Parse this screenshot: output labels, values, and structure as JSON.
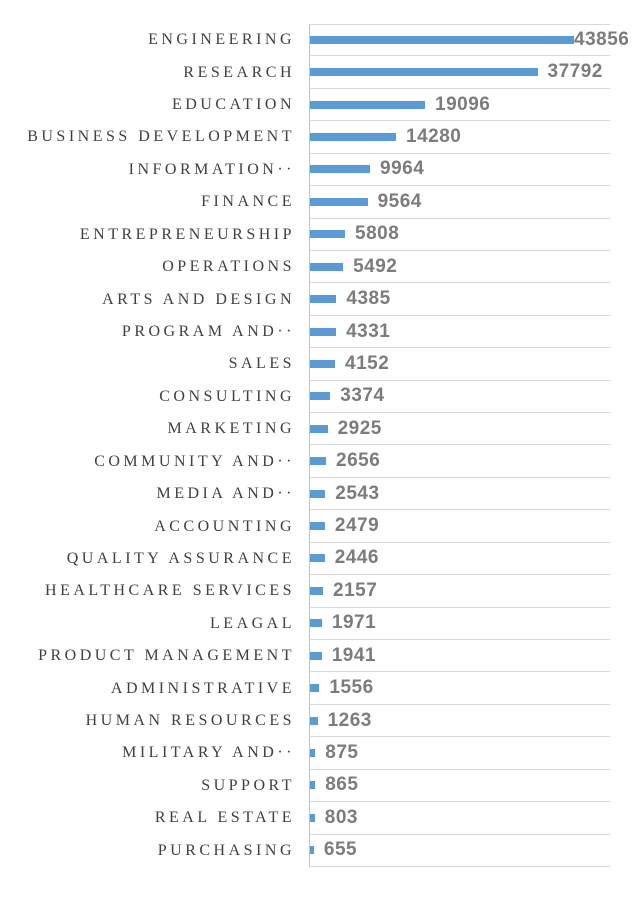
{
  "chart_data": {
    "type": "bar",
    "orientation": "horizontal",
    "title": "",
    "xlabel": "",
    "ylabel": "",
    "xlim": [
      0,
      50000
    ],
    "grid": "category-separator horizontal gridlines between rows, vertical axis line at value 0",
    "legend": "none",
    "value_labels": "outside-end, bold gray",
    "categories": [
      "ENGINEERING",
      "RESEARCH",
      "EDUCATION",
      "BUSINESS DEVELOPMENT",
      "INFORMATION··",
      "FINANCE",
      "ENTREPRENEURSHIP",
      "OPERATIONS",
      "ARTS AND DESIGN",
      "PROGRAM AND··",
      "SALES",
      "CONSULTING",
      "MARKETING",
      "COMMUNITY AND··",
      "MEDIA AND··",
      "ACCOUNTING",
      "QUALITY ASSURANCE",
      "HEALTHCARE SERVICES",
      "LEAGAL",
      "PRODUCT MANAGEMENT",
      "ADMINISTRATIVE",
      "HUMAN RESOURCES",
      "MILITARY AND··",
      "SUPPORT",
      "REAL ESTATE",
      "PURCHASING"
    ],
    "values": [
      43856,
      37792,
      19096,
      14280,
      9964,
      9564,
      5808,
      5492,
      4385,
      4331,
      4152,
      3374,
      2925,
      2656,
      2543,
      2479,
      2446,
      2157,
      1971,
      1941,
      1556,
      1263,
      875,
      865,
      803,
      655
    ],
    "colors": {
      "bar": "#5B9BD5",
      "gridline": "#D9D9D9",
      "axis_line": "#C3C3C3",
      "value_label": "#7C7C7C",
      "category_label": "#3F3F3F",
      "background": "#FFFFFF"
    }
  }
}
